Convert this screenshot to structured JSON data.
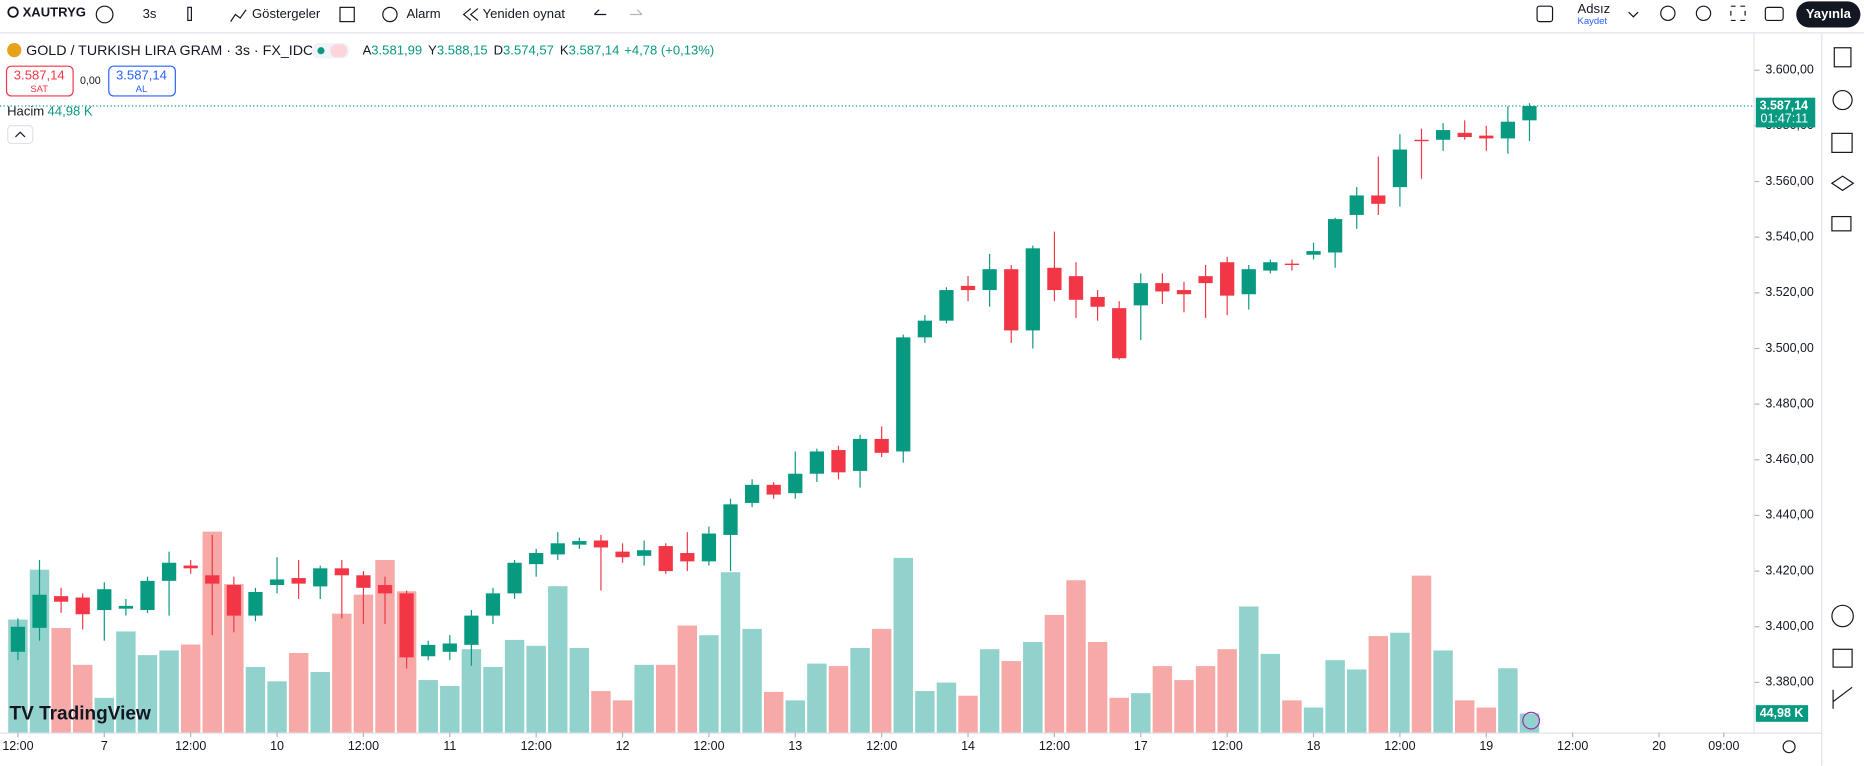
{
  "toolbar": {
    "symbol": "XAUTRYG",
    "interval": "3s",
    "indicators": "Göstergeler",
    "alarm": "Alarm",
    "replay": "Yeniden oynat",
    "layout_name": "Adsız",
    "save": "Kaydet",
    "publish": "Yayınla"
  },
  "legend": {
    "title": "GOLD / TURKISH LIRA GRAM · 3s · FX_IDC",
    "fields": [
      {
        "key": "A",
        "value": "3.581,99"
      },
      {
        "key": "Y",
        "value": "3.588,15"
      },
      {
        "key": "D",
        "value": "3.574,57"
      },
      {
        "key": "K",
        "value": "3.587,14"
      }
    ],
    "change": "+4,78 (+0,13%)",
    "sell_price": "3.587,14",
    "sell": "SAT",
    "spread": "0,00",
    "buy_price": "3.587,14",
    "buy": "AL",
    "volume_name": "Hacim",
    "volume": "44,98 K"
  },
  "chart_data": {
    "type": "candlestick",
    "xlim": [
      -0.83,
      83.4
    ],
    "xticks": [
      {
        "value": 0,
        "label": "12:00"
      },
      {
        "value": 4,
        "label": "7"
      },
      {
        "value": 8,
        "label": "12:00"
      },
      {
        "value": 12,
        "label": "10"
      },
      {
        "value": 16,
        "label": "12:00"
      },
      {
        "value": 20,
        "label": "11"
      },
      {
        "value": 24,
        "label": "12:00"
      },
      {
        "value": 28,
        "label": "12"
      },
      {
        "value": 32,
        "label": "12:00"
      },
      {
        "value": 36,
        "label": "13"
      },
      {
        "value": 40,
        "label": "12:00"
      },
      {
        "value": 44,
        "label": "14"
      },
      {
        "value": 48,
        "label": "12:00"
      },
      {
        "value": 52,
        "label": "17"
      },
      {
        "value": 56,
        "label": "12:00"
      },
      {
        "value": 60,
        "label": "18"
      },
      {
        "value": 64,
        "label": "12:00"
      },
      {
        "value": 68,
        "label": "19"
      },
      {
        "value": 72,
        "label": "12:00"
      },
      {
        "value": 76,
        "label": "20"
      },
      {
        "value": 79,
        "label": "09:00"
      }
    ],
    "ylim": [
      3362.0,
      3613.2
    ],
    "yticks": [
      {
        "value": 3380,
        "label": "3.380,00"
      },
      {
        "value": 3400,
        "label": "3.400,00"
      },
      {
        "value": 3420,
        "label": "3.420,00"
      },
      {
        "value": 3440,
        "label": "3.440,00"
      },
      {
        "value": 3460,
        "label": "3.460,00"
      },
      {
        "value": 3480,
        "label": "3.480,00"
      },
      {
        "value": 3500,
        "label": "3.500,00"
      },
      {
        "value": 3520,
        "label": "3.520,00"
      },
      {
        "value": 3540,
        "label": "3.540,00"
      },
      {
        "value": 3560,
        "label": "3.560,00"
      },
      {
        "value": 3580,
        "label": "3.580,00"
      },
      {
        "value": 3600,
        "label": "3.600,00"
      }
    ],
    "up_color": "#089981",
    "down_color": "#f23645",
    "volume_up_color": "#92d2cc",
    "volume_down_color": "#f7a9a7",
    "open": [
      3391,
      3399.6,
      3411,
      3410.5,
      3406,
      3406.5,
      3406,
      3416.5,
      3422,
      3418.5,
      3415,
      3404,
      3415,
      3417.5,
      3414.5,
      3421,
      3418.5,
      3415,
      3412,
      3389.4,
      3391,
      3393.5,
      3404,
      3412,
      3422.5,
      3426,
      3429.5,
      3431,
      3427,
      3425.5,
      3429,
      3426.5,
      3423.5,
      3433,
      3444.5,
      3451,
      3448,
      3455,
      3463.5,
      3456,
      3467.5,
      3463,
      3504,
      3510,
      3522.5,
      3521,
      3528.5,
      3506.5,
      3529,
      3526,
      3518.5,
      3514.5,
      3515.5,
      3523.5,
      3521,
      3526,
      3531,
      3519.5,
      3528,
      3530.5,
      3533.7,
      3534.5,
      3548,
      3555,
      3558,
      3575,
      3575,
      3577.5,
      3576.5,
      3575.5,
      3581.99
    ],
    "high": [
      3403,
      3424,
      3414,
      3412,
      3416,
      3410,
      3418,
      3427,
      3424,
      3433,
      3418,
      3414,
      3425,
      3424,
      3422,
      3424,
      3420,
      3418,
      3413,
      3395,
      3397,
      3406,
      3414,
      3424,
      3428,
      3434,
      3432,
      3433,
      3430,
      3431,
      3430,
      3434,
      3436,
      3446,
      3453,
      3452,
      3463,
      3464,
      3465,
      3469,
      3472,
      3505,
      3512,
      3522,
      3526,
      3534,
      3530,
      3537,
      3542,
      3531,
      3521,
      3517,
      3527,
      3527,
      3524,
      3530,
      3533,
      3530,
      3532,
      3532,
      3538,
      3547,
      3558,
      3569,
      3577,
      3579,
      3581,
      3582,
      3580,
      3587,
      3588.15
    ],
    "low": [
      3388,
      3395,
      3405,
      3399,
      3395,
      3404,
      3405,
      3404,
      3419,
      3397,
      3398,
      3402,
      3412,
      3410,
      3410,
      3403,
      3401,
      3401,
      3385,
      3388,
      3388,
      3386,
      3401,
      3410,
      3418,
      3424,
      3428,
      3413,
      3423,
      3422,
      3419,
      3420,
      3422,
      3420,
      3443,
      3446,
      3446,
      3452,
      3453,
      3450,
      3461,
      3459,
      3502,
      3509,
      3517,
      3515,
      3502,
      3500,
      3517,
      3511,
      3510,
      3496,
      3503,
      3516,
      3513,
      3511,
      3512,
      3514,
      3527,
      3528,
      3532,
      3529,
      3543,
      3548,
      3551,
      3561,
      3571,
      3575,
      3571,
      3570,
      3574.57
    ],
    "close": [
      3400,
      3411.5,
      3409,
      3404.5,
      3413.5,
      3407.5,
      3416.5,
      3423,
      3421,
      3415.5,
      3404,
      3412.5,
      3417,
      3415.5,
      3421,
      3418.5,
      3414,
      3412,
      3389,
      3393.5,
      3394,
      3404,
      3412,
      3423,
      3426.5,
      3430,
      3430.8,
      3428.5,
      3425,
      3427.5,
      3420,
      3423.5,
      3433.5,
      3444,
      3451,
      3447.5,
      3455,
      3463,
      3455.5,
      3467.5,
      3462.5,
      3504,
      3510,
      3521,
      3521,
      3528.5,
      3506.5,
      3536,
      3521,
      3517.5,
      3515,
      3496.5,
      3523.5,
      3520.5,
      3519.5,
      3523.5,
      3519,
      3528.5,
      3531,
      3530,
      3535,
      3546.5,
      3555,
      3552,
      3571.5,
      3574.5,
      3578.5,
      3576,
      3575.5,
      3581.5,
      3587.14
    ],
    "volume": [
      267,
      385,
      247,
      160,
      82,
      239,
      183,
      194,
      208,
      475,
      351,
      155,
      121,
      188,
      143,
      281,
      326,
      408,
      334,
      124,
      110,
      197,
      155,
      219,
      205,
      346,
      200,
      98,
      76,
      160,
      160,
      253,
      230,
      379,
      245,
      96,
      76,
      163,
      157,
      200,
      245,
      413,
      98,
      118,
      87,
      197,
      169,
      214,
      278,
      360,
      214,
      82,
      93,
      157,
      124,
      157,
      197,
      298,
      186,
      76,
      59,
      171,
      149,
      228,
      236,
      371,
      194,
      76,
      59,
      152,
      44.98
    ],
    "volume_lim": [
      0,
      1653
    ],
    "price_label": "3.587,14",
    "countdown": "01:47:11",
    "volume_label": "44,98 K"
  }
}
